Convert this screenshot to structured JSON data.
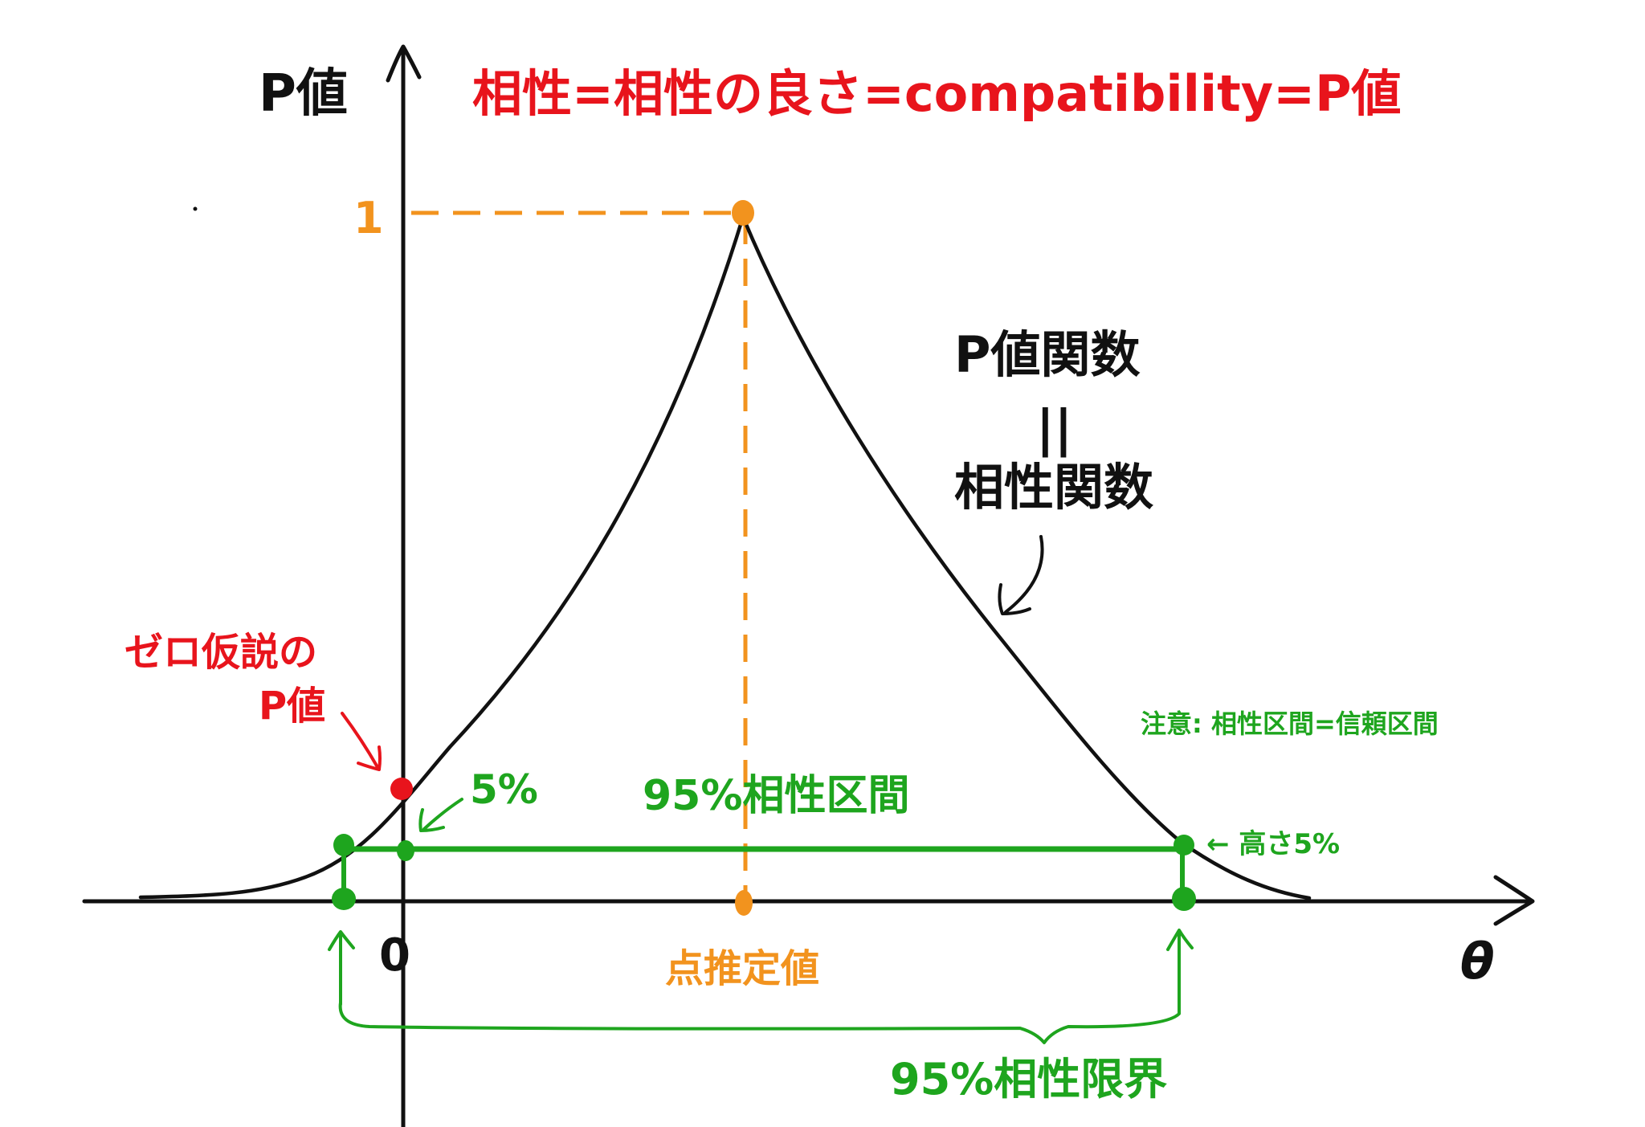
{
  "colors": {
    "black": "#111111",
    "red": "#e8141c",
    "orange": "#f2931e",
    "green": "#1ea51e"
  },
  "labels": {
    "y_axis": "P値",
    "title": "相性=相性の良さ=compatibility=P値",
    "y_one": "1",
    "func_top": "P値関数",
    "func_equals": "||",
    "func_bottom": "相性関数",
    "null_p_line1": "ゼロ仮説の",
    "null_p_line2": "P値",
    "note": "注意: 相性区間=信頼区間",
    "five_percent": "5%",
    "interval": "95%相性区間",
    "height_label": "← 高さ5%",
    "zero": "0",
    "point_estimate": "点推定値",
    "theta": "θ",
    "limits": "95%相性限界"
  },
  "curve": {
    "shape": "P-value (compatibility) function",
    "peak_p": 1,
    "interval_level_p": 0.05
  }
}
